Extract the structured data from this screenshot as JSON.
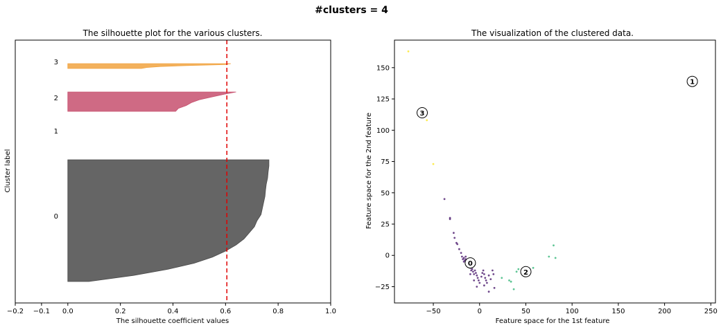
{
  "suptitle": "#clusters = 4",
  "chart_data": [
    {
      "type": "area",
      "title": "The silhouette plot for the various clusters.",
      "xlabel": "The silhouette coefficient values",
      "ylabel": "Cluster label",
      "xlim": [
        -0.2,
        1.0
      ],
      "xticks": [
        -0.2,
        -0.1,
        0.0,
        0.2,
        0.4,
        0.6,
        0.8,
        1.0
      ],
      "tick_labels": [
        "−0.2",
        "−0.1",
        "0.0",
        "0.2",
        "0.4",
        "0.6",
        "0.8",
        "1.0"
      ],
      "silhouette_avg": 0.605,
      "grid": false,
      "clusters": [
        {
          "label": "0",
          "color": "#4a4a4a",
          "profile": [
            [
              0.0,
              0.765
            ],
            [
              0.05,
              0.765
            ],
            [
              0.1,
              0.762
            ],
            [
              0.15,
              0.76
            ],
            [
              0.2,
              0.755
            ],
            [
              0.25,
              0.752
            ],
            [
              0.3,
              0.75
            ],
            [
              0.35,
              0.745
            ],
            [
              0.4,
              0.74
            ],
            [
              0.45,
              0.735
            ],
            [
              0.5,
              0.72
            ],
            [
              0.55,
              0.71
            ],
            [
              0.6,
              0.69
            ],
            [
              0.65,
              0.67
            ],
            [
              0.7,
              0.64
            ],
            [
              0.75,
              0.6
            ],
            [
              0.8,
              0.55
            ],
            [
              0.85,
              0.48
            ],
            [
              0.9,
              0.38
            ],
            [
              0.95,
              0.25
            ],
            [
              1.0,
              0.08
            ]
          ]
        },
        {
          "label": "1",
          "color": "#8c1f5e",
          "profile": []
        },
        {
          "label": "2",
          "color": "#c7506e",
          "profile": [
            [
              0.0,
              0.64
            ],
            [
              0.1,
              0.6
            ],
            [
              0.25,
              0.55
            ],
            [
              0.4,
              0.5
            ],
            [
              0.55,
              0.47
            ],
            [
              0.7,
              0.45
            ],
            [
              0.85,
              0.42
            ],
            [
              1.0,
              0.41
            ]
          ]
        },
        {
          "label": "3",
          "color": "#f1a340",
          "profile": [
            [
              0.0,
              0.62
            ],
            [
              0.2,
              0.6
            ],
            [
              0.4,
              0.45
            ],
            [
              0.6,
              0.35
            ],
            [
              0.8,
              0.3
            ],
            [
              1.0,
              0.28
            ]
          ]
        }
      ]
    },
    {
      "type": "scatter",
      "title": "The visualization of the clustered data.",
      "xlabel": "Feature space for the 1st feature",
      "ylabel": "Feature space for the 2nd feature",
      "xlim": [
        -92,
        255
      ],
      "ylim": [
        -38,
        172
      ],
      "xticks": [
        -50,
        0,
        50,
        100,
        150,
        200,
        250
      ],
      "xtick_labels": [
        "−50",
        "0",
        "50",
        "100",
        "150",
        "200",
        "250"
      ],
      "yticks": [
        -25,
        0,
        25,
        50,
        75,
        100,
        125,
        150
      ],
      "ytick_labels": [
        "−25",
        "0",
        "25",
        "50",
        "75",
        "100",
        "125",
        "150"
      ],
      "grid": false,
      "series": [
        {
          "cluster": "0",
          "color": "#4b1a6e",
          "points": [
            [
              -38,
              45
            ],
            [
              -32,
              30
            ],
            [
              -32,
              29
            ],
            [
              -28,
              18
            ],
            [
              -27,
              14
            ],
            [
              -25,
              10
            ],
            [
              -24,
              9
            ],
            [
              -22,
              5
            ],
            [
              -20,
              2
            ],
            [
              -19,
              -1
            ],
            [
              -18,
              -3
            ],
            [
              -17,
              -2
            ],
            [
              -16,
              -4
            ],
            [
              -15,
              -3
            ],
            [
              -14,
              -5
            ],
            [
              -13,
              -7
            ],
            [
              -12,
              -9
            ],
            [
              -11,
              -8
            ],
            [
              -10,
              -10
            ],
            [
              -9,
              -12
            ],
            [
              -8,
              -11
            ],
            [
              -7,
              -13
            ],
            [
              -6,
              -15
            ],
            [
              -5,
              -12
            ],
            [
              -4,
              -14
            ],
            [
              -3,
              -16
            ],
            [
              -2,
              -18
            ],
            [
              -1,
              -20
            ],
            [
              0,
              -22
            ],
            [
              -3,
              -25
            ],
            [
              2,
              -17
            ],
            [
              3,
              -14
            ],
            [
              4,
              -12
            ],
            [
              5,
              -15
            ],
            [
              6,
              -18
            ],
            [
              7,
              -20
            ],
            [
              8,
              -22
            ],
            [
              10,
              -16
            ],
            [
              12,
              -19
            ],
            [
              14,
              -12
            ],
            [
              15,
              -15
            ],
            [
              16,
              -26
            ],
            [
              -8,
              -6
            ],
            [
              -15,
              -1
            ],
            [
              -17,
              -5
            ],
            [
              10,
              -29
            ],
            [
              5,
              -24
            ],
            [
              -6,
              -20
            ],
            [
              -10,
              -15
            ]
          ]
        },
        {
          "cluster": "1",
          "color": "#31688e",
          "points": []
        },
        {
          "cluster": "2",
          "color": "#35b779",
          "points": [
            [
              24,
              -18
            ],
            [
              32,
              -20
            ],
            [
              34,
              -21
            ],
            [
              37,
              -27
            ],
            [
              40,
              -13
            ],
            [
              42,
              -11
            ],
            [
              58,
              -10
            ],
            [
              75,
              -1
            ],
            [
              80,
              8
            ],
            [
              82,
              -2
            ]
          ]
        },
        {
          "cluster": "3",
          "color": "#fde725",
          "points": [
            [
              -77,
              163
            ],
            [
              -57,
              108
            ],
            [
              -50,
              73
            ]
          ]
        }
      ],
      "centers": [
        {
          "label": "0",
          "x": -10,
          "y": -6
        },
        {
          "label": "1",
          "x": 230,
          "y": 139
        },
        {
          "label": "2",
          "x": 50,
          "y": -13
        },
        {
          "label": "3",
          "x": -62,
          "y": 114
        }
      ]
    }
  ]
}
